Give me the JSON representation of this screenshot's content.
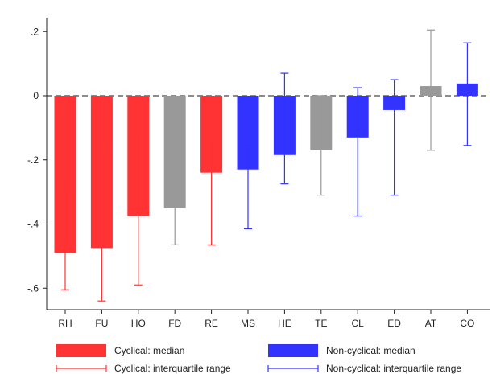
{
  "chart_data": {
    "type": "bar",
    "title": "",
    "xlabel": "",
    "ylabel": "",
    "ylim": [
      -0.65,
      0.22
    ],
    "yticks": [
      {
        "value": 0.2,
        "label": ".2"
      },
      {
        "value": 0,
        "label": "0"
      },
      {
        "value": -0.2,
        "label": "-.2"
      },
      {
        "value": -0.4,
        "label": "-.4"
      },
      {
        "value": -0.6,
        "label": "-.6"
      }
    ],
    "reference_line": {
      "value": 0,
      "style": "dashed"
    },
    "categories": [
      "RH",
      "FU",
      "HO",
      "FD",
      "RE",
      "MS",
      "HE",
      "TE",
      "CL",
      "ED",
      "AT",
      "CO"
    ],
    "groups": [
      "cyclical",
      "cyclical",
      "cyclical",
      "other",
      "cyclical",
      "noncyclical",
      "noncyclical",
      "other",
      "noncyclical",
      "noncyclical",
      "other",
      "noncyclical"
    ],
    "median": [
      -0.49,
      -0.475,
      -0.375,
      -0.35,
      -0.24,
      -0.23,
      -0.185,
      -0.17,
      -0.13,
      -0.045,
      0.03,
      0.038
    ],
    "iqr_low": [
      -0.605,
      -0.64,
      -0.59,
      -0.465,
      -0.465,
      -0.415,
      -0.275,
      -0.31,
      -0.375,
      -0.31,
      -0.17,
      -0.155
    ],
    "iqr_high": [
      -0.27,
      -0.15,
      -0.11,
      -0.14,
      -0.125,
      -0.155,
      0.07,
      0,
      0.025,
      0.05,
      0.205,
      0.165
    ],
    "colors": {
      "cyclical": "#ff3333",
      "noncyclical": "#3333ff",
      "other": "#999999",
      "zero_line": "#666666",
      "axis": "#222222"
    },
    "legend": {
      "placement": "bottom",
      "items": [
        {
          "label": "Cyclical: median",
          "kind": "box",
          "color": "#ff3333"
        },
        {
          "label": "Non-cyclical: median",
          "kind": "box",
          "color": "#3333ff"
        },
        {
          "label": "Cyclical: interquartile range",
          "kind": "whisker",
          "color": "#ff3333"
        },
        {
          "label": "Non-cyclical: interquartile range",
          "kind": "whisker",
          "color": "#3333ff"
        }
      ]
    }
  }
}
